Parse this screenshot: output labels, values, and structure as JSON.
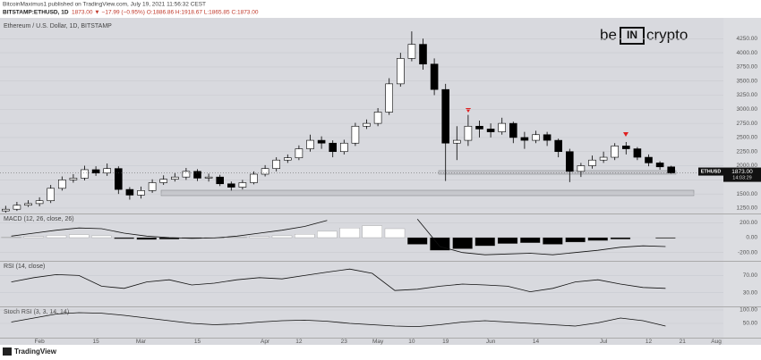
{
  "header": {
    "publisher": "BitcoinMaximus1 published on TradingView.com, July 19, 2021 11:56:32 CEST",
    "symbol": "BITSTAMP:ETHUSD, 1D",
    "quote": "1873.00 ▼ −17.99 (−0.95%) O:1886.86 H:1918.67 L:1865.85 C:1873.00"
  },
  "logo": {
    "left": "be",
    "middle": "IN",
    "right": "crypto"
  },
  "footer": "TradingView",
  "chart_data": [
    {
      "type": "candlestick",
      "title": "Ethereum / U.S. Dollar, 1D, BITSTAMP",
      "categories": [
        null,
        null,
        null,
        "Feb",
        null,
        null,
        null,
        null,
        "15",
        null,
        null,
        null,
        "Mar",
        null,
        null,
        null,
        null,
        "15",
        null,
        null,
        null,
        null,
        null,
        "Apr",
        null,
        null,
        "12",
        null,
        null,
        null,
        "23",
        null,
        null,
        "May",
        null,
        null,
        "10",
        null,
        null,
        "19",
        null,
        null,
        null,
        "Jun",
        null,
        null,
        null,
        "14",
        null,
        null,
        null,
        null,
        null,
        "Jul",
        null,
        null,
        null,
        "12",
        null,
        null,
        "21",
        null,
        null,
        "Aug"
      ],
      "open": [
        1200,
        1230,
        1300,
        1330,
        1380,
        1600,
        1750,
        1780,
        1930,
        1870,
        1950,
        1580,
        1480,
        1560,
        1700,
        1760,
        1800,
        1900,
        1780,
        1800,
        1680,
        1620,
        1700,
        1850,
        1950,
        2100,
        2140,
        2300,
        2450,
        2400,
        2250,
        2400,
        2700,
        2750,
        2950,
        3450,
        3900,
        4150,
        3800,
        3350,
        2400,
        2450,
        2700,
        2650,
        2600,
        2750,
        2500,
        2450,
        2550,
        2450,
        2250,
        1900,
        2000,
        2100,
        2150,
        2350,
        2300,
        2150,
        2050,
        1980,
        null,
        null,
        null,
        null
      ],
      "high": [
        1290,
        1360,
        1390,
        1440,
        1660,
        1810,
        1850,
        2000,
        1990,
        2040,
        1990,
        1620,
        1630,
        1760,
        1830,
        1870,
        1960,
        1940,
        1860,
        1840,
        1720,
        1750,
        1900,
        2010,
        2150,
        2200,
        2360,
        2550,
        2520,
        2450,
        2460,
        2760,
        2820,
        3020,
        3550,
        4000,
        4380,
        4250,
        3900,
        3450,
        2700,
        2900,
        2800,
        2750,
        2850,
        2780,
        2600,
        2620,
        2600,
        2480,
        2300,
        2050,
        2180,
        2250,
        2400,
        2420,
        2330,
        2200,
        2080,
        2000,
        null,
        null,
        null,
        null
      ],
      "low": [
        1170,
        1200,
        1270,
        1280,
        1340,
        1560,
        1700,
        1740,
        1820,
        1820,
        1500,
        1400,
        1420,
        1520,
        1660,
        1720,
        1750,
        1730,
        1720,
        1640,
        1560,
        1580,
        1670,
        1810,
        1900,
        2050,
        2100,
        2250,
        2300,
        2150,
        2200,
        2350,
        2650,
        2700,
        2900,
        3400,
        3850,
        3700,
        3250,
        1730,
        2100,
        2350,
        2500,
        2500,
        2550,
        2400,
        2300,
        2400,
        2350,
        2150,
        1710,
        1800,
        1950,
        2050,
        2100,
        2200,
        2100,
        1990,
        1930,
        1860,
        null,
        null,
        null,
        null
      ],
      "close": [
        1230,
        1300,
        1330,
        1380,
        1600,
        1750,
        1780,
        1930,
        1870,
        1950,
        1580,
        1480,
        1560,
        1700,
        1760,
        1800,
        1900,
        1780,
        1800,
        1680,
        1620,
        1700,
        1850,
        1950,
        2100,
        2140,
        2300,
        2450,
        2400,
        2250,
        2400,
        2700,
        2750,
        2950,
        3450,
        3900,
        4150,
        3800,
        3350,
        2400,
        2450,
        2700,
        2650,
        2600,
        2750,
        2500,
        2450,
        2550,
        2450,
        2250,
        1900,
        2000,
        2100,
        2150,
        2350,
        2300,
        2150,
        2050,
        1980,
        1873,
        null,
        null,
        null,
        null
      ],
      "up_color": "#ffffff",
      "down_color": "#000000",
      "ylim": [
        1170,
        4650
      ],
      "yticks": [
        {
          "value": 1250,
          "label": "1250.00"
        },
        {
          "value": 1500,
          "label": "1500.00"
        },
        {
          "value": 1750,
          "label": "1750.00"
        },
        {
          "value": 2000,
          "label": "2000.00"
        },
        {
          "value": 2250,
          "label": "2250.00"
        },
        {
          "value": 2500,
          "label": "2500.00"
        },
        {
          "value": 2750,
          "label": "2750.00"
        },
        {
          "value": 3000,
          "label": "3000.00"
        },
        {
          "value": 3250,
          "label": "3250.00"
        },
        {
          "value": 3500,
          "label": "3500.00"
        },
        {
          "value": 3750,
          "label": "3750.00"
        },
        {
          "value": 4000,
          "label": "4000.00"
        },
        {
          "value": 4250,
          "label": "4250.00"
        }
      ],
      "price_tag": {
        "symbol": "ETHUSD",
        "price": "1873.00",
        "countdown": "14:03:29"
      }
    },
    {
      "type": "macd",
      "title": "MACD (12, 26, close, 26)",
      "histogram": [
        5,
        15,
        30,
        40,
        25,
        -15,
        -25,
        -20,
        -10,
        -5,
        5,
        15,
        25,
        45,
        85,
        130,
        160,
        120,
        -90,
        -170,
        -150,
        -110,
        -80,
        -70,
        -90,
        -60,
        -40,
        -20,
        0,
        -10
      ],
      "line": [
        20,
        60,
        100,
        130,
        120,
        60,
        20,
        0,
        -10,
        -5,
        20,
        60,
        100,
        150,
        230,
        null,
        null,
        null,
        250,
        -120,
        -200,
        -230,
        -220,
        -210,
        -230,
        -200,
        -170,
        -130,
        -110,
        -120
      ],
      "up_color": "#ffffff",
      "down_color": "#000000",
      "line_color": "#111111",
      "ylim": [
        -300,
        300
      ],
      "yticks": [
        {
          "value": 200,
          "label": "200.00"
        },
        {
          "value": 0,
          "label": "0.00"
        },
        {
          "value": -200,
          "label": "-200.00"
        }
      ]
    },
    {
      "type": "line",
      "title": "RSI (14, close)",
      "values": [
        55,
        65,
        72,
        70,
        45,
        40,
        55,
        60,
        48,
        52,
        60,
        65,
        62,
        70,
        78,
        85,
        75,
        35,
        38,
        45,
        50,
        48,
        45,
        32,
        40,
        55,
        60,
        50,
        42,
        40
      ],
      "color": "#111111",
      "ylim": [
        0,
        100
      ],
      "yticks": [
        {
          "value": 70,
          "label": "70.00"
        },
        {
          "value": 30,
          "label": "30.00"
        }
      ]
    },
    {
      "type": "line",
      "title": "Stoch RSI (3, 3, 14, 14)",
      "values": [
        55,
        70,
        85,
        90,
        88,
        80,
        70,
        60,
        50,
        45,
        48,
        55,
        60,
        62,
        58,
        50,
        45,
        40,
        38,
        45,
        55,
        60,
        55,
        50,
        45,
        40,
        52,
        70,
        60,
        40
      ],
      "color": "#111111",
      "ylim": [
        0,
        100
      ],
      "yticks": [
        {
          "value": 100,
          "label": "100.00"
        },
        {
          "value": 50,
          "label": "50.00"
        }
      ]
    }
  ]
}
